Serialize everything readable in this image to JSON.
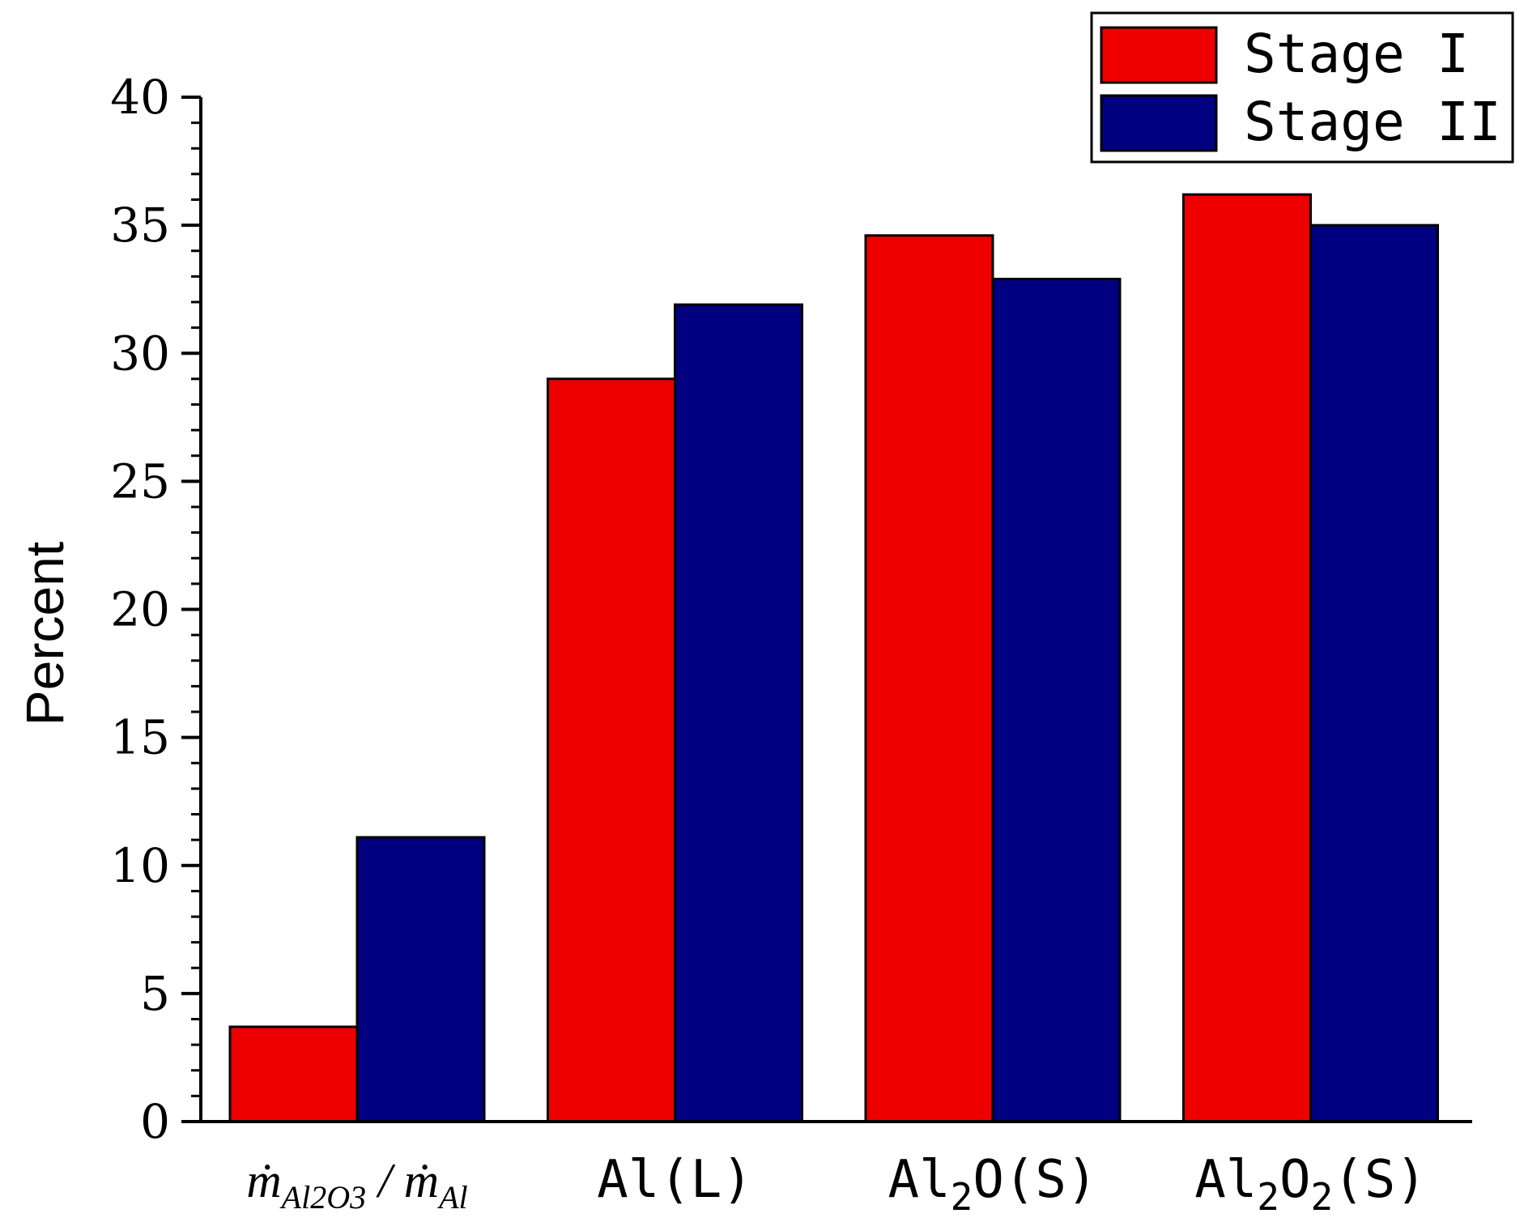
{
  "chart_data": {
    "type": "bar",
    "title": "",
    "xlabel": "",
    "ylabel": "Percent",
    "ylim": [
      0,
      40
    ],
    "yticks": [
      "0",
      "5",
      "10",
      "15",
      "20",
      "25",
      "30",
      "35",
      "40"
    ],
    "categories": [
      {
        "main": "ṁ",
        "sub": "Al2O3",
        "sep": " / ",
        "main2": "ṁ",
        "sub2": "Al"
      },
      {
        "text": "Al(L)"
      },
      {
        "main": "Al",
        "sub": "2",
        "rest": "O(S)"
      },
      {
        "main": "Al",
        "sub": "2",
        "mid": "O",
        "sub2": "2",
        "rest": "(S)"
      }
    ],
    "series": [
      {
        "name": "Stage I",
        "color": "#ee0000",
        "values": [
          3.7,
          29.0,
          34.6,
          36.2
        ]
      },
      {
        "name": "Stage II",
        "color": "#000080",
        "values": [
          11.1,
          31.9,
          32.9,
          35.0
        ]
      }
    ],
    "legend": {
      "position": "top-right",
      "entries": [
        "Stage I",
        "Stage II"
      ]
    }
  }
}
